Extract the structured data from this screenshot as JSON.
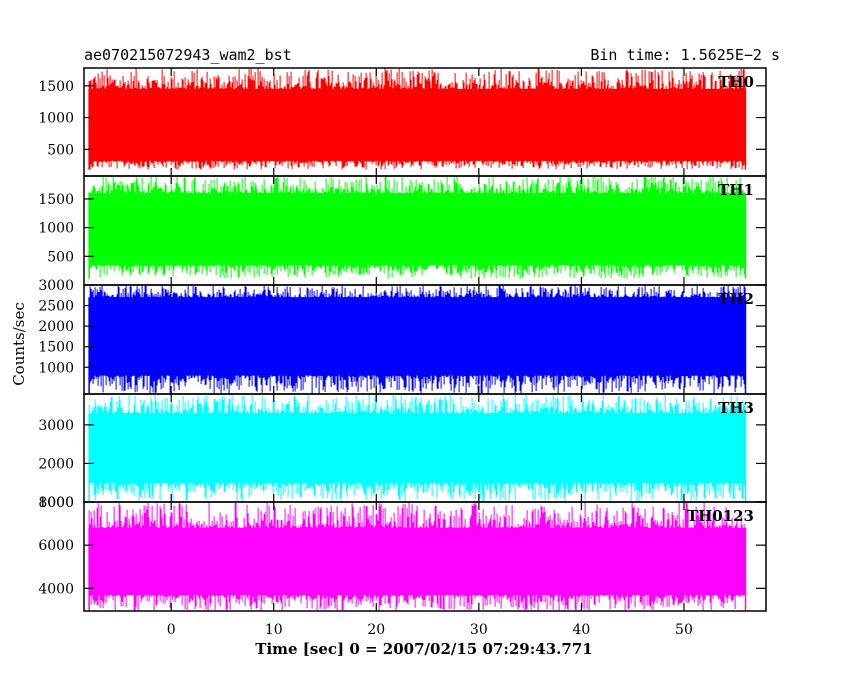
{
  "header": {
    "left_title": "ae070215072943_wam2_bst",
    "right_title": "Bin time: 1.5625E−2 s"
  },
  "chart_data": {
    "type": "line",
    "xlabel": "Time [sec] 0 = 2007/02/15 07:29:43.771",
    "ylabel": "Counts/sec",
    "xlim": [
      -8.5,
      58
    ],
    "x_ticks": [
      0,
      10,
      20,
      30,
      40,
      50
    ],
    "data_x_range": [
      -8,
      56
    ],
    "grid": false,
    "panels": [
      {
        "name": "TH0",
        "color": "#ff0000",
        "ylim": [
          80,
          1780
        ],
        "y_ticks": [
          500,
          1000,
          1500
        ],
        "baseline": 180,
        "band_low": 320,
        "band_high": 1450,
        "peak_max": 1780
      },
      {
        "name": "TH1",
        "color": "#00ff00",
        "ylim": [
          0,
          1900
        ],
        "y_ticks": [
          500,
          1000,
          1500
        ],
        "baseline": 110,
        "band_low": 350,
        "band_high": 1600,
        "peak_max": 1900
      },
      {
        "name": "TH2",
        "color": "#0000ff",
        "ylim": [
          350,
          3000
        ],
        "y_ticks": [
          1000,
          1500,
          2000,
          2500,
          3000
        ],
        "baseline": 350,
        "band_low": 800,
        "band_high": 2700,
        "peak_max": 3000
      },
      {
        "name": "TH3",
        "color": "#00ffff",
        "ylim": [
          1000,
          3800
        ],
        "y_ticks": [
          1000,
          2000,
          3000
        ],
        "baseline": 1000,
        "band_low": 1500,
        "band_high": 3300,
        "peak_max": 3800
      },
      {
        "name": "TH0123",
        "color": "#ff00ff",
        "ylim": [
          2950,
          8000
        ],
        "y_ticks": [
          4000,
          6000,
          8000
        ],
        "baseline": 2950,
        "band_low": 3700,
        "band_high": 6800,
        "peak_max": 8000
      }
    ]
  }
}
